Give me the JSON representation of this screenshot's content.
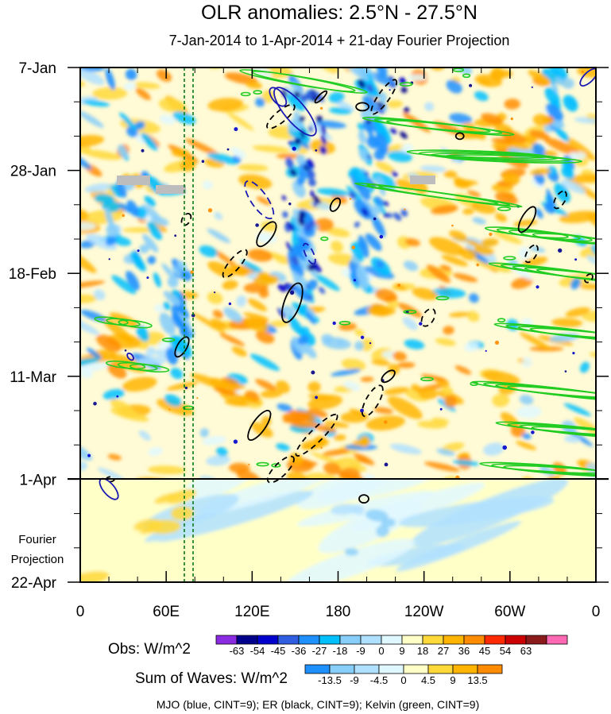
{
  "chart_data": {
    "type": "heatmap",
    "title": "OLR anomalies: 2.5°N - 27.5°N",
    "subtitle": "7-Jan-2014 to 1-Apr-2014 + 21-day Fourier Projection",
    "x_ticks": [
      "0",
      "60E",
      "120E",
      "180",
      "120W",
      "60W",
      "0"
    ],
    "x_range_deg_east": [
      0,
      360
    ],
    "y_ticks": [
      "7-Jan",
      "28-Jan",
      "18-Feb",
      "11-Mar",
      "1-Apr",
      "22-Apr"
    ],
    "y_range_days_from_start": [
      0,
      105
    ],
    "projection_line_at": "1-Apr",
    "projection_label": [
      "Fourier",
      "Projection"
    ],
    "vertical_dashed_lines_lon": [
      72,
      79
    ],
    "obs_legend": {
      "label": "Obs: W/m^2",
      "levels": [
        "-63",
        "-54",
        "-45",
        "-36",
        "-27",
        "-18",
        "-9",
        "0",
        "9",
        "18",
        "27",
        "36",
        "45",
        "54",
        "63"
      ],
      "colors": [
        "#8a2be2",
        "#00008b",
        "#0000cd",
        "#2f5fe0",
        "#1e90ff",
        "#00bfff",
        "#87cefa",
        "#b0e0ff",
        "#e0f8ff",
        "#ffffc8",
        "#ffd83a",
        "#ffb400",
        "#ff8c00",
        "#ff2a00",
        "#cc0000",
        "#8b1a1a",
        "#ff69b4"
      ]
    },
    "waves_legend": {
      "label": "Sum of Waves: W/m^2",
      "levels": [
        "-13.5",
        "-9",
        "-4.5",
        "0",
        "4.5",
        "9",
        "13.5"
      ],
      "colors": [
        "#1e90ff",
        "#87cefa",
        "#b0e0ff",
        "#e0f8ff",
        "#ffffc8",
        "#ffd83a",
        "#ffb400",
        "#ff8c00"
      ]
    },
    "overlays": {
      "caption": "MJO (blue, CINT=9); ER (black, CINT=9); Kelvin (green, CINT=9)",
      "colors": {
        "MJO": "#1a1ab4",
        "ER": "#000000",
        "Kelvin": "#22cc22"
      }
    }
  }
}
